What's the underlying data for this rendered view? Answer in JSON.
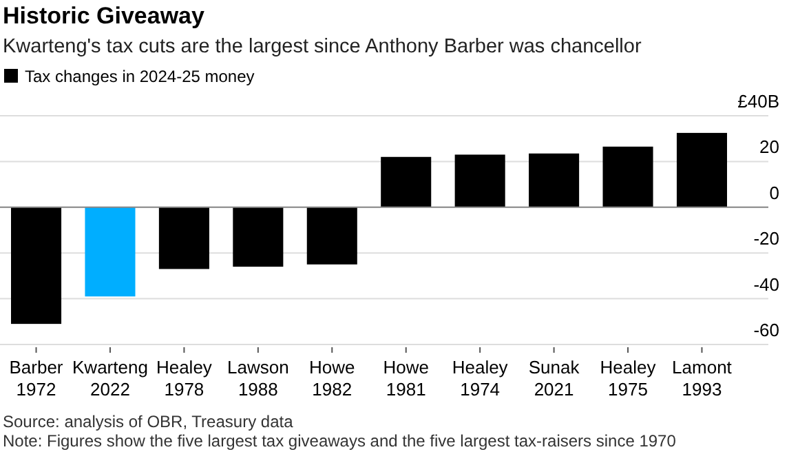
{
  "chart_data": {
    "type": "bar",
    "title": "Historic Giveaway",
    "subtitle": "Kwarteng's tax cuts are the largest since Anthony Barber was chancellor",
    "categories": [
      "Barber 1972",
      "Kwarteng 2022",
      "Healey 1978",
      "Lawson 1988",
      "Howe 1982",
      "Howe 1981",
      "Healey 1974",
      "Sunak 2021",
      "Healey 1975",
      "Lamont 1993"
    ],
    "series": [
      {
        "name": "Tax changes in 2024-25 money",
        "color": "#000000",
        "colors": [
          "#000000",
          "#00aeff",
          "#000000",
          "#000000",
          "#000000",
          "#000000",
          "#000000",
          "#000000",
          "#000000",
          "#000000"
        ],
        "values": [
          -51,
          -39,
          -27,
          -26,
          -25,
          22,
          23,
          23.5,
          26.5,
          32.5
        ]
      }
    ],
    "ylim": [
      -60,
      40
    ],
    "yticks": [
      -60,
      -40,
      -20,
      0,
      20,
      {
        "value": 40,
        "label": "£40B"
      }
    ],
    "grid": "y",
    "legend": "top left",
    "annotations": [
      "Source: analysis of OBR, Treasury data",
      "Note: Figures show the five largest tax giveaways and the five largest tax-raisers since 1970"
    ]
  }
}
